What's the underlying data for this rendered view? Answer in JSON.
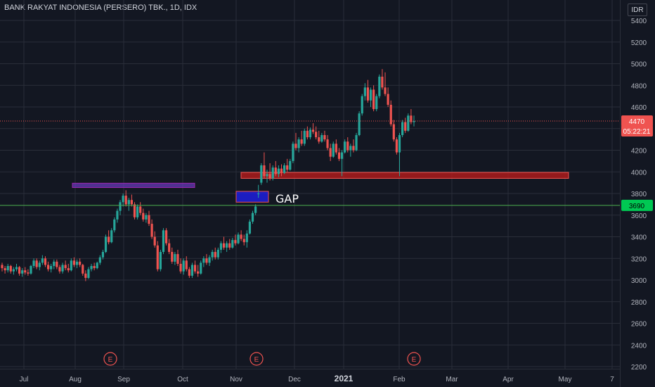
{
  "header": {
    "title": "BANK RAKYAT INDONESIA (PERSERO) TBK., 1D, IDX",
    "currency": "IDR"
  },
  "colors": {
    "background": "#131722",
    "grid": "#2a2e39",
    "up": "#26a69a",
    "down": "#ef5350",
    "axis_text": "#b2b5be",
    "support_line": "#4caf50"
  },
  "chart_data": {
    "type": "candlestick",
    "y_axis": {
      "ticks": [
        2200,
        2400,
        2600,
        2800,
        3000,
        3200,
        3400,
        3600,
        3800,
        4000,
        4200,
        4400,
        4600,
        4800,
        5000,
        5200,
        5400
      ],
      "range": [
        2190,
        5480
      ]
    },
    "x_axis": {
      "labels": [
        "Jul",
        "Aug",
        "Sep",
        "Oct",
        "Nov",
        "Dec",
        "2021",
        "Feb",
        "Mar",
        "Apr",
        "May",
        "7"
      ]
    },
    "price_labels": {
      "last_price": "4470",
      "countdown": "05:22:21",
      "line_price": "3690"
    },
    "annotations": {
      "gap_label": "GAP",
      "earnings_markers": [
        "E",
        "E",
        "E"
      ],
      "zones": [
        {
          "name": "resistance-zone-purple",
          "price_low": 3855,
          "price_high": 3895
        },
        {
          "name": "gap-zone-blue",
          "price_low": 3720,
          "price_high": 3820
        },
        {
          "name": "support-zone-red",
          "price_low": 3940,
          "price_high": 3995
        }
      ],
      "horizontal_line": 3690
    },
    "ohlc": [
      [
        3140,
        3160,
        3080,
        3110
      ],
      [
        3110,
        3130,
        3060,
        3090
      ],
      [
        3090,
        3150,
        3070,
        3130
      ],
      [
        3130,
        3140,
        3060,
        3080
      ],
      [
        3080,
        3120,
        3050,
        3100
      ],
      [
        3100,
        3150,
        3080,
        3120
      ],
      [
        3120,
        3130,
        3040,
        3060
      ],
      [
        3060,
        3110,
        3030,
        3090
      ],
      [
        3090,
        3120,
        3050,
        3070
      ],
      [
        3070,
        3100,
        3040,
        3060
      ],
      [
        3060,
        3140,
        3050,
        3130
      ],
      [
        3130,
        3200,
        3110,
        3180
      ],
      [
        3180,
        3200,
        3100,
        3120
      ],
      [
        3120,
        3180,
        3090,
        3160
      ],
      [
        3160,
        3230,
        3140,
        3200
      ],
      [
        3200,
        3220,
        3120,
        3140
      ],
      [
        3140,
        3170,
        3080,
        3100
      ],
      [
        3100,
        3150,
        3070,
        3130
      ],
      [
        3130,
        3190,
        3100,
        3170
      ],
      [
        3170,
        3190,
        3100,
        3120
      ],
      [
        3120,
        3140,
        3060,
        3080
      ],
      [
        3080,
        3160,
        3060,
        3140
      ],
      [
        3140,
        3180,
        3090,
        3110
      ],
      [
        3110,
        3150,
        3070,
        3090
      ],
      [
        3090,
        3200,
        3080,
        3180
      ],
      [
        3180,
        3210,
        3120,
        3140
      ],
      [
        3140,
        3190,
        3110,
        3170
      ],
      [
        3170,
        3200,
        3120,
        3140
      ],
      [
        3140,
        3150,
        3040,
        3060
      ],
      [
        3060,
        3090,
        2990,
        3020
      ],
      [
        3020,
        3120,
        3010,
        3100
      ],
      [
        3100,
        3150,
        3080,
        3130
      ],
      [
        3130,
        3160,
        3090,
        3110
      ],
      [
        3110,
        3170,
        3100,
        3160
      ],
      [
        3160,
        3230,
        3140,
        3210
      ],
      [
        3210,
        3280,
        3190,
        3260
      ],
      [
        3260,
        3420,
        3250,
        3400
      ],
      [
        3400,
        3460,
        3330,
        3350
      ],
      [
        3350,
        3480,
        3340,
        3460
      ],
      [
        3460,
        3580,
        3440,
        3560
      ],
      [
        3560,
        3660,
        3530,
        3640
      ],
      [
        3640,
        3740,
        3600,
        3720
      ],
      [
        3720,
        3800,
        3680,
        3780
      ],
      [
        3780,
        3830,
        3680,
        3700
      ],
      [
        3700,
        3760,
        3640,
        3740
      ],
      [
        3740,
        3790,
        3680,
        3700
      ],
      [
        3700,
        3720,
        3560,
        3580
      ],
      [
        3580,
        3700,
        3560,
        3680
      ],
      [
        3680,
        3720,
        3600,
        3620
      ],
      [
        3620,
        3660,
        3540,
        3560
      ],
      [
        3560,
        3620,
        3530,
        3600
      ],
      [
        3600,
        3640,
        3500,
        3520
      ],
      [
        3520,
        3560,
        3380,
        3400
      ],
      [
        3400,
        3450,
        3300,
        3320
      ],
      [
        3320,
        3360,
        3080,
        3100
      ],
      [
        3100,
        3280,
        3080,
        3260
      ],
      [
        3260,
        3480,
        3240,
        3460
      ],
      [
        3460,
        3480,
        3320,
        3340
      ],
      [
        3340,
        3380,
        3240,
        3260
      ],
      [
        3260,
        3300,
        3150,
        3170
      ],
      [
        3170,
        3260,
        3140,
        3240
      ],
      [
        3240,
        3280,
        3130,
        3150
      ],
      [
        3150,
        3200,
        3060,
        3080
      ],
      [
        3080,
        3200,
        3050,
        3180
      ],
      [
        3180,
        3220,
        3080,
        3100
      ],
      [
        3100,
        3120,
        3020,
        3040
      ],
      [
        3040,
        3160,
        3020,
        3140
      ],
      [
        3140,
        3180,
        3060,
        3080
      ],
      [
        3080,
        3140,
        3030,
        3060
      ],
      [
        3060,
        3180,
        3050,
        3160
      ],
      [
        3160,
        3220,
        3120,
        3200
      ],
      [
        3200,
        3240,
        3140,
        3160
      ],
      [
        3160,
        3230,
        3130,
        3210
      ],
      [
        3210,
        3280,
        3180,
        3260
      ],
      [
        3260,
        3300,
        3190,
        3210
      ],
      [
        3210,
        3300,
        3190,
        3280
      ],
      [
        3280,
        3360,
        3250,
        3340
      ],
      [
        3340,
        3400,
        3280,
        3300
      ],
      [
        3300,
        3360,
        3260,
        3340
      ],
      [
        3340,
        3380,
        3280,
        3300
      ],
      [
        3300,
        3390,
        3290,
        3370
      ],
      [
        3370,
        3420,
        3320,
        3340
      ],
      [
        3340,
        3440,
        3330,
        3420
      ],
      [
        3420,
        3460,
        3360,
        3380
      ],
      [
        3380,
        3420,
        3320,
        3350
      ],
      [
        3350,
        3460,
        3300,
        3430
      ],
      [
        3430,
        3560,
        3420,
        3540
      ],
      [
        3540,
        3640,
        3520,
        3620
      ],
      [
        3620,
        3700,
        3600,
        3680
      ],
      [
        3800,
        3880,
        3760,
        3800
      ],
      [
        3900,
        4080,
        3880,
        4060
      ],
      [
        4060,
        4180,
        3940,
        3960
      ],
      [
        3960,
        4020,
        3900,
        3980
      ],
      [
        3980,
        4080,
        3920,
        3940
      ],
      [
        3940,
        4060,
        3920,
        4040
      ],
      [
        4040,
        4100,
        3960,
        3980
      ],
      [
        3980,
        4060,
        3950,
        4030
      ],
      [
        4030,
        4070,
        3960,
        3990
      ],
      [
        3990,
        4080,
        3980,
        4060
      ],
      [
        4060,
        4120,
        4000,
        4020
      ],
      [
        4020,
        4120,
        4010,
        4100
      ],
      [
        4100,
        4280,
        4080,
        4260
      ],
      [
        4260,
        4360,
        4200,
        4220
      ],
      [
        4220,
        4320,
        4180,
        4300
      ],
      [
        4300,
        4380,
        4240,
        4260
      ],
      [
        4260,
        4400,
        4240,
        4380
      ],
      [
        4380,
        4420,
        4300,
        4320
      ],
      [
        4320,
        4410,
        4300,
        4390
      ],
      [
        4390,
        4450,
        4350,
        4370
      ],
      [
        4370,
        4420,
        4300,
        4320
      ],
      [
        4320,
        4380,
        4260,
        4280
      ],
      [
        4280,
        4360,
        4270,
        4340
      ],
      [
        4340,
        4380,
        4280,
        4300
      ],
      [
        4300,
        4340,
        4200,
        4220
      ],
      [
        4220,
        4260,
        4100,
        4140
      ],
      [
        4140,
        4280,
        4130,
        4260
      ],
      [
        4260,
        4300,
        4160,
        4180
      ],
      [
        4180,
        4220,
        4100,
        4120
      ],
      [
        4120,
        4200,
        3960,
        4180
      ],
      [
        4180,
        4300,
        4170,
        4280
      ],
      [
        4280,
        4320,
        4180,
        4200
      ],
      [
        4200,
        4260,
        4140,
        4240
      ],
      [
        4240,
        4300,
        4180,
        4200
      ],
      [
        4200,
        4360,
        4190,
        4340
      ],
      [
        4340,
        4560,
        4330,
        4540
      ],
      [
        4540,
        4720,
        4520,
        4700
      ],
      [
        4700,
        4820,
        4660,
        4780
      ],
      [
        4780,
        4850,
        4640,
        4660
      ],
      [
        4660,
        4780,
        4600,
        4760
      ],
      [
        4760,
        4800,
        4560,
        4580
      ],
      [
        4580,
        4720,
        4560,
        4700
      ],
      [
        4700,
        4900,
        4680,
        4880
      ],
      [
        4880,
        4950,
        4760,
        4780
      ],
      [
        4780,
        4920,
        4700,
        4720
      ],
      [
        4720,
        4780,
        4600,
        4620
      ],
      [
        4620,
        4660,
        4420,
        4440
      ],
      [
        4440,
        4480,
        4280,
        4300
      ],
      [
        4300,
        4320,
        4160,
        4180
      ],
      [
        4180,
        4360,
        3960,
        4340
      ],
      [
        4340,
        4480,
        4320,
        4460
      ],
      [
        4460,
        4500,
        4360,
        4380
      ],
      [
        4380,
        4540,
        4370,
        4520
      ],
      [
        4520,
        4580,
        4440,
        4460
      ],
      [
        4460,
        4520,
        4420,
        4470
      ]
    ]
  }
}
